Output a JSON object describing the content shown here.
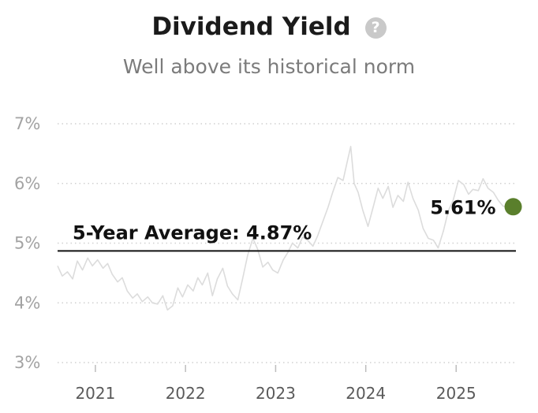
{
  "header": {
    "title": "Dividend Yield",
    "help_icon": "question-mark-icon",
    "subtitle": "Well above its historical norm"
  },
  "chart_data": {
    "type": "line",
    "title": "Dividend Yield",
    "subtitle": "Well above its historical norm",
    "xlabel": "",
    "ylabel": "",
    "ylim": [
      3,
      7
    ],
    "xlim": [
      "2020-08-01",
      "2025-08-31"
    ],
    "y_ticks": [
      3,
      4,
      5,
      6,
      7
    ],
    "y_tick_labels": [
      "3%",
      "4%",
      "5%",
      "6%",
      "7%"
    ],
    "x_ticks": [
      "2021-01-01",
      "2022-01-01",
      "2023-01-01",
      "2024-01-01",
      "2025-01-01"
    ],
    "x_tick_labels": [
      "2021",
      "2022",
      "2023",
      "2024",
      "2025"
    ],
    "grid": "horizontal-dotted",
    "colors": {
      "series": "#dcdcdc",
      "average_line": "#111111",
      "current_marker": "#5a7f2c",
      "grid": "#d0d0d0"
    },
    "series": [
      {
        "points": [
          [
            "2020-08-01",
            4.62
          ],
          [
            "2020-08-20",
            4.45
          ],
          [
            "2020-09-10",
            4.52
          ],
          [
            "2020-10-01",
            4.4
          ],
          [
            "2020-10-20",
            4.7
          ],
          [
            "2020-11-10",
            4.55
          ],
          [
            "2020-12-01",
            4.75
          ],
          [
            "2020-12-20",
            4.62
          ],
          [
            "2021-01-10",
            4.72
          ],
          [
            "2021-02-01",
            4.58
          ],
          [
            "2021-02-20",
            4.66
          ],
          [
            "2021-03-10",
            4.48
          ],
          [
            "2021-04-01",
            4.35
          ],
          [
            "2021-04-20",
            4.42
          ],
          [
            "2021-05-10",
            4.2
          ],
          [
            "2021-06-01",
            4.08
          ],
          [
            "2021-06-20",
            4.15
          ],
          [
            "2021-07-10",
            4.02
          ],
          [
            "2021-08-01",
            4.1
          ],
          [
            "2021-08-20",
            4.0
          ],
          [
            "2021-09-10",
            3.98
          ],
          [
            "2021-10-01",
            4.12
          ],
          [
            "2021-10-20",
            3.88
          ],
          [
            "2021-11-10",
            3.95
          ],
          [
            "2021-12-01",
            4.25
          ],
          [
            "2021-12-20",
            4.1
          ],
          [
            "2022-01-10",
            4.3
          ],
          [
            "2022-02-01",
            4.2
          ],
          [
            "2022-02-20",
            4.42
          ],
          [
            "2022-03-10",
            4.3
          ],
          [
            "2022-04-01",
            4.5
          ],
          [
            "2022-04-20",
            4.12
          ],
          [
            "2022-05-10",
            4.4
          ],
          [
            "2022-06-01",
            4.58
          ],
          [
            "2022-06-20",
            4.28
          ],
          [
            "2022-07-10",
            4.15
          ],
          [
            "2022-08-01",
            4.05
          ],
          [
            "2022-08-20",
            4.4
          ],
          [
            "2022-09-10",
            4.8
          ],
          [
            "2022-10-01",
            5.08
          ],
          [
            "2022-10-20",
            4.9
          ],
          [
            "2022-11-10",
            4.6
          ],
          [
            "2022-12-01",
            4.68
          ],
          [
            "2022-12-20",
            4.55
          ],
          [
            "2023-01-10",
            4.5
          ],
          [
            "2023-02-01",
            4.72
          ],
          [
            "2023-02-20",
            4.85
          ],
          [
            "2023-03-10",
            5.0
          ],
          [
            "2023-04-01",
            4.92
          ],
          [
            "2023-04-20",
            5.1
          ],
          [
            "2023-05-10",
            5.05
          ],
          [
            "2023-06-01",
            4.95
          ],
          [
            "2023-06-20",
            5.12
          ],
          [
            "2023-07-10",
            5.35
          ],
          [
            "2023-08-01",
            5.6
          ],
          [
            "2023-08-20",
            5.85
          ],
          [
            "2023-09-10",
            6.1
          ],
          [
            "2023-10-01",
            6.05
          ],
          [
            "2023-10-20",
            6.4
          ],
          [
            "2023-11-01",
            6.62
          ],
          [
            "2023-11-15",
            6.0
          ],
          [
            "2023-12-01",
            5.85
          ],
          [
            "2023-12-20",
            5.55
          ],
          [
            "2024-01-10",
            5.28
          ],
          [
            "2024-02-01",
            5.62
          ],
          [
            "2024-02-20",
            5.92
          ],
          [
            "2024-03-10",
            5.75
          ],
          [
            "2024-04-01",
            5.95
          ],
          [
            "2024-04-20",
            5.6
          ],
          [
            "2024-05-10",
            5.8
          ],
          [
            "2024-06-01",
            5.7
          ],
          [
            "2024-06-20",
            6.02
          ],
          [
            "2024-07-10",
            5.75
          ],
          [
            "2024-08-01",
            5.55
          ],
          [
            "2024-08-20",
            5.25
          ],
          [
            "2024-09-10",
            5.08
          ],
          [
            "2024-10-01",
            5.05
          ],
          [
            "2024-10-20",
            4.92
          ],
          [
            "2024-11-10",
            5.2
          ],
          [
            "2024-12-01",
            5.55
          ],
          [
            "2024-12-20",
            5.72
          ],
          [
            "2025-01-10",
            6.05
          ],
          [
            "2025-02-01",
            5.98
          ],
          [
            "2025-02-20",
            5.82
          ],
          [
            "2025-03-10",
            5.9
          ],
          [
            "2025-04-01",
            5.88
          ],
          [
            "2025-04-20",
            6.08
          ],
          [
            "2025-05-10",
            5.92
          ],
          [
            "2025-06-01",
            5.85
          ],
          [
            "2025-06-20",
            5.72
          ],
          [
            "2025-07-10",
            5.62
          ],
          [
            "2025-08-01",
            5.6
          ],
          [
            "2025-08-20",
            5.61
          ]
        ]
      }
    ],
    "reference_line": {
      "value": 4.87,
      "label": "5-Year Average: 4.87%"
    },
    "current_point": {
      "x": "2025-08-20",
      "value": 5.61,
      "label": "5.61%"
    }
  }
}
